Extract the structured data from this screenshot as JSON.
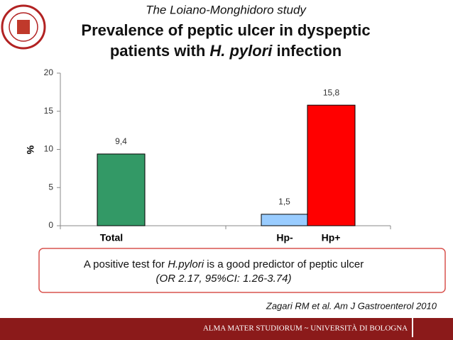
{
  "slide": {
    "study": "The Loiano-Monghidoro study",
    "title_line1": "Prevalence of peptic ulcer in dyspeptic",
    "title_line2_a": "patients with ",
    "title_line2_b": "H. pylori",
    "title_line2_c": " infection",
    "note_a": "A positive test for ",
    "note_b": "H.pylori",
    "note_c": " is a good predictor of peptic ulcer",
    "note_line2": "(OR 2.17, 95%CI: 1.26-3.74)",
    "citation": "Zagari RM et al. Am J Gastroenterol 2010",
    "footer": "ALMA MATER STUDIORUM ~ UNIVERSITÀ DI BOLOGNA"
  },
  "chart_data": {
    "type": "bar",
    "categories": [
      "Total",
      "Hp-",
      "Hp+"
    ],
    "values": [
      9.4,
      1.5,
      15.8
    ],
    "value_labels": [
      "9,4",
      "1,5",
      "15,8"
    ],
    "colors": [
      "#339966",
      "#99ccff",
      "#ff0000"
    ],
    "ylabel": "%",
    "ylim": [
      0,
      20
    ],
    "yticks": [
      0,
      5,
      10,
      15,
      20
    ],
    "grid": false
  }
}
